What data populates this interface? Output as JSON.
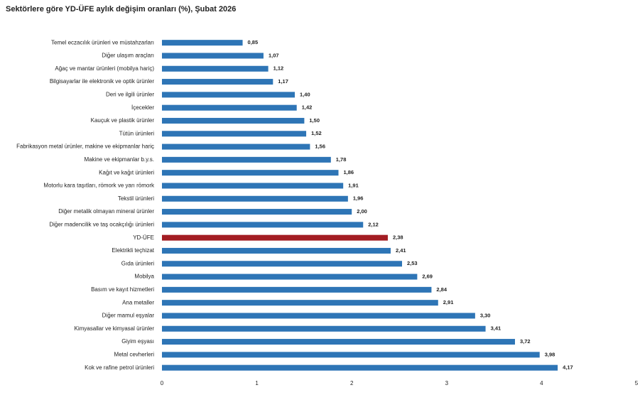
{
  "chart_data": {
    "type": "bar",
    "orientation": "horizontal",
    "title": "Sektörlere göre YD-ÜFE aylık değişim oranları (%), Şubat 2026",
    "categories": [
      "Temel eczacılık ürünleri ve müstahzarları",
      "Diğer ulaşım araçları",
      "Ağaç ve mantar ürünleri (mobilya hariç)",
      "Bilgisayarlar ile elektronik ve optik ürünler",
      "Deri ve ilgili ürünler",
      "İçecekler",
      "Kauçuk ve plastik ürünler",
      "Tütün ürünleri",
      "Fabrikasyon metal ürünler, makine ve ekipmanlar hariç",
      "Makine ve ekipmanlar b.y.s.",
      "Kağıt ve kağıt ürünleri",
      "Motorlu kara taşıtları, römork ve yarı römork",
      "Tekstil ürünleri",
      "Diğer metalik olmayan mineral ürünler",
      "Diğer madencilik ve taş ocakçılığı ürünleri",
      "YD-ÜFE",
      "Elektrikli teçhizat",
      "Gıda ürünleri",
      "Mobilya",
      "Basım ve kayıt hizmetleri",
      "Ana metaller",
      "Diğer mamul eşyalar",
      "Kimyasallar ve kimyasal ürünler",
      "Giyim eşyası",
      "Metal cevherleri",
      "Kok ve rafine petrol ürünleri"
    ],
    "values": [
      0.85,
      1.07,
      1.12,
      1.17,
      1.4,
      1.42,
      1.5,
      1.52,
      1.56,
      1.78,
      1.86,
      1.91,
      1.96,
      2.0,
      2.12,
      2.38,
      2.41,
      2.53,
      2.69,
      2.84,
      2.91,
      3.3,
      3.41,
      3.72,
      3.98,
      4.17
    ],
    "value_labels": [
      "0,85",
      "1,07",
      "1,12",
      "1,17",
      "1,40",
      "1,42",
      "1,50",
      "1,52",
      "1,56",
      "1,78",
      "1,86",
      "1,91",
      "1,96",
      "2,00",
      "2,12",
      "2,38",
      "2,41",
      "2,53",
      "2,69",
      "2,84",
      "2,91",
      "3,30",
      "3,41",
      "3,72",
      "3,98",
      "4,17"
    ],
    "colors": [
      "#2e75b6",
      "#2e75b6",
      "#2e75b6",
      "#2e75b6",
      "#2e75b6",
      "#2e75b6",
      "#2e75b6",
      "#2e75b6",
      "#2e75b6",
      "#2e75b6",
      "#2e75b6",
      "#2e75b6",
      "#2e75b6",
      "#2e75b6",
      "#2e75b6",
      "#a31d23",
      "#2e75b6",
      "#2e75b6",
      "#2e75b6",
      "#2e75b6",
      "#2e75b6",
      "#2e75b6",
      "#2e75b6",
      "#2e75b6",
      "#2e75b6",
      "#2e75b6"
    ],
    "xlim": [
      0,
      5
    ],
    "xticks": [
      0,
      1,
      2,
      3,
      4,
      5
    ],
    "grid": false
  }
}
